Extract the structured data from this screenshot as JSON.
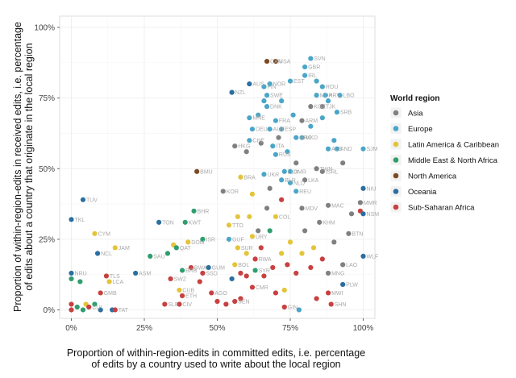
{
  "chart_data": {
    "type": "scatter",
    "xlabel": "Proportion of within-region-edits in committed edits, i.e. percentage\nof edits by a country used to write about the local region",
    "ylabel": "Proportion of within-region-edits in received edits, i.e. percentage\nof edits about a country that originate in the local region",
    "xlim": [
      -0.04,
      1.04
    ],
    "ylim": [
      -0.03,
      1.04
    ],
    "x_ticks": [
      0,
      0.25,
      0.5,
      0.75,
      1
    ],
    "x_tick_labels": [
      "0%",
      "25%",
      "50%",
      "75%",
      "100%"
    ],
    "y_ticks": [
      0,
      0.25,
      0.5,
      0.75,
      1
    ],
    "y_tick_labels": [
      "0%",
      "25%",
      "50%",
      "75%",
      "100%"
    ],
    "grid": true,
    "legend": {
      "title": "World region",
      "placement": "right",
      "entries": [
        {
          "name": "Asia",
          "color": "#808080"
        },
        {
          "name": "Europe",
          "color": "#4aa6c8"
        },
        {
          "name": "Latin America & Caribbean",
          "color": "#e3c43a"
        },
        {
          "name": "Middle East & North Africa",
          "color": "#2e9e6e"
        },
        {
          "name": "North America",
          "color": "#7a4a25"
        },
        {
          "name": "Oceania",
          "color": "#2a6fa0"
        },
        {
          "name": "Sub-Saharan Africa",
          "color": "#c94040"
        }
      ]
    },
    "points": [
      {
        "label": "CAN",
        "x": 0.67,
        "y": 0.88,
        "region": "North America"
      },
      {
        "label": "USA",
        "x": 0.7,
        "y": 0.88,
        "region": "North America"
      },
      {
        "label": "BMU",
        "x": 0.43,
        "y": 0.49,
        "region": "North America"
      },
      {
        "label": "SVN",
        "x": 0.82,
        "y": 0.89,
        "region": "Europe"
      },
      {
        "label": "GBR",
        "x": 0.8,
        "y": 0.86,
        "region": "Europe"
      },
      {
        "label": "IRL",
        "x": 0.8,
        "y": 0.83,
        "region": "Europe"
      },
      {
        "label": "EST",
        "x": 0.75,
        "y": 0.81,
        "region": "Europe"
      },
      {
        "label": "FIN",
        "x": 0.66,
        "y": 0.79,
        "region": "Europe"
      },
      {
        "label": "NOR",
        "x": 0.68,
        "y": 0.8,
        "region": "Europe"
      },
      {
        "label": "ROU",
        "x": 0.86,
        "y": 0.79,
        "region": "Europe"
      },
      {
        "label": "SWE",
        "x": 0.67,
        "y": 0.76,
        "region": "Europe"
      },
      {
        "label": "MDA",
        "x": 0.84,
        "y": 0.76,
        "region": "Europe"
      },
      {
        "label": "HRV",
        "x": 0.87,
        "y": 0.76,
        "region": "Europe"
      },
      {
        "label": "LBO",
        "x": 0.92,
        "y": 0.76,
        "region": "Europe"
      },
      {
        "label": "DNK",
        "x": 0.67,
        "y": 0.72,
        "region": "Europe"
      },
      {
        "label": "MKD",
        "x": 0.79,
        "y": 0.61,
        "region": "Europe"
      },
      {
        "label": "SRB",
        "x": 0.91,
        "y": 0.7,
        "region": "Europe"
      },
      {
        "label": "MNE",
        "x": 0.61,
        "y": 0.68,
        "region": "Europe"
      },
      {
        "label": "FRA",
        "x": 0.7,
        "y": 0.67,
        "region": "Europe"
      },
      {
        "label": "DEU",
        "x": 0.62,
        "y": 0.64,
        "region": "Europe"
      },
      {
        "label": "AUT",
        "x": 0.68,
        "y": 0.64,
        "region": "Europe"
      },
      {
        "label": "ESP",
        "x": 0.72,
        "y": 0.64,
        "region": "Europe"
      },
      {
        "label": "GRC",
        "x": 0.77,
        "y": 0.61,
        "region": "Europe"
      },
      {
        "label": "CHE",
        "x": 0.61,
        "y": 0.6,
        "region": "Europe"
      },
      {
        "label": "ITA",
        "x": 0.69,
        "y": 0.58,
        "region": "Europe"
      },
      {
        "label": "RUS",
        "x": 0.7,
        "y": 0.55,
        "region": "Europe"
      },
      {
        "label": "ALB",
        "x": 0.88,
        "y": 0.57,
        "region": "Europe"
      },
      {
        "label": "AND",
        "x": 0.91,
        "y": 0.57,
        "region": "Europe"
      },
      {
        "label": "SJM",
        "x": 1.0,
        "y": 0.57,
        "region": "Europe"
      },
      {
        "label": "UKR",
        "x": 0.66,
        "y": 0.48,
        "region": "Europe"
      },
      {
        "label": "LUX",
        "x": 0.73,
        "y": 0.49,
        "region": "Europe"
      },
      {
        "label": "CMR",
        "x": 0.75,
        "y": 0.49,
        "region": "Europe"
      },
      {
        "label": "BLR",
        "x": 0.72,
        "y": 0.46,
        "region": "Europe"
      },
      {
        "label": "NLD",
        "x": 0.75,
        "y": 0.45,
        "region": "Europe"
      },
      {
        "label": "REU",
        "x": 0.77,
        "y": 0.42,
        "region": "Europe"
      },
      {
        "label": "GUF",
        "x": 0.54,
        "y": 0.25,
        "region": "Europe"
      },
      {
        "label": "KOR",
        "x": 0.52,
        "y": 0.42,
        "region": "Asia"
      },
      {
        "label": "HKG",
        "x": 0.56,
        "y": 0.58,
        "region": "Asia"
      },
      {
        "label": "KGZ",
        "x": 0.82,
        "y": 0.72,
        "region": "Asia"
      },
      {
        "label": "TJK",
        "x": 0.86,
        "y": 0.72,
        "region": "Asia"
      },
      {
        "label": "ARM",
        "x": 0.79,
        "y": 0.67,
        "region": "Asia"
      },
      {
        "label": "TWN",
        "x": 0.84,
        "y": 0.5,
        "region": "Asia"
      },
      {
        "label": "ISRL",
        "x": 0.86,
        "y": 0.49,
        "region": "Asia"
      },
      {
        "label": "LKA",
        "x": 0.8,
        "y": 0.46,
        "region": "Asia"
      },
      {
        "label": "MDV",
        "x": 0.79,
        "y": 0.36,
        "region": "Asia"
      },
      {
        "label": "MAC",
        "x": 0.88,
        "y": 0.37,
        "region": "Asia"
      },
      {
        "label": "MMR",
        "x": 0.99,
        "y": 0.38,
        "region": "Asia"
      },
      {
        "label": "KHM",
        "x": 0.85,
        "y": 0.31,
        "region": "Asia"
      },
      {
        "label": "BTN",
        "x": 0.95,
        "y": 0.27,
        "region": "Asia"
      },
      {
        "label": "LAO",
        "x": 0.93,
        "y": 0.16,
        "region": "Asia"
      },
      {
        "label": "MNG",
        "x": 0.88,
        "y": 0.13,
        "region": "Asia"
      },
      {
        "label": "BRA",
        "x": 0.58,
        "y": 0.47,
        "region": "Latin America & Caribbean"
      },
      {
        "label": "COL",
        "x": 0.7,
        "y": 0.33,
        "region": "Latin America & Caribbean"
      },
      {
        "label": "TTO",
        "x": 0.54,
        "y": 0.3,
        "region": "Latin America & Caribbean"
      },
      {
        "label": "URY",
        "x": 0.62,
        "y": 0.26,
        "region": "Latin America & Caribbean"
      },
      {
        "label": "CYM",
        "x": 0.08,
        "y": 0.27,
        "region": "Latin America & Caribbean"
      },
      {
        "label": "JAM",
        "x": 0.15,
        "y": 0.22,
        "region": "Latin America & Caribbean"
      },
      {
        "label": "LCA",
        "x": 0.13,
        "y": 0.1,
        "region": "Latin America & Caribbean"
      },
      {
        "label": "DOM",
        "x": 0.4,
        "y": 0.24,
        "region": "Latin America & Caribbean"
      },
      {
        "label": "CUB",
        "x": 0.37,
        "y": 0.07,
        "region": "Latin America & Caribbean"
      },
      {
        "label": "BHR",
        "x": 0.42,
        "y": 0.35,
        "region": "Middle East & North Africa"
      },
      {
        "label": "KWT",
        "x": 0.39,
        "y": 0.31,
        "region": "Middle East & North Africa"
      },
      {
        "label": "ISR",
        "x": 0.45,
        "y": 0.25,
        "region": "Middle East & North Africa"
      },
      {
        "label": "SAU",
        "x": 0.27,
        "y": 0.19,
        "region": "Middle East & North Africa"
      },
      {
        "label": "QAT",
        "x": 0.36,
        "y": 0.22,
        "region": "Middle East & North Africa"
      },
      {
        "label": "SYR",
        "x": 0.63,
        "y": 0.14,
        "region": "Middle East & North Africa"
      },
      {
        "label": "BRB",
        "x": 0.38,
        "y": 0.14,
        "region": "Middle East & North Africa"
      },
      {
        "label": "TKL",
        "x": 0.0,
        "y": 0.32,
        "region": "Oceania"
      },
      {
        "label": "TUV",
        "x": 0.04,
        "y": 0.39,
        "region": "Oceania"
      },
      {
        "label": "NCL",
        "x": 0.09,
        "y": 0.2,
        "region": "Oceania"
      },
      {
        "label": "NZL",
        "x": 0.55,
        "y": 0.77,
        "region": "Oceania"
      },
      {
        "label": "AUS",
        "x": 0.61,
        "y": 0.8,
        "region": "Oceania"
      },
      {
        "label": "TON",
        "x": 0.3,
        "y": 0.31,
        "region": "Oceania"
      },
      {
        "label": "ASM",
        "x": 0.22,
        "y": 0.13,
        "region": "Oceania"
      },
      {
        "label": "NRU",
        "x": 0.0,
        "y": 0.13,
        "region": "Oceania"
      },
      {
        "label": "GUM",
        "x": 0.47,
        "y": 0.15,
        "region": "Oceania"
      },
      {
        "label": "NIU",
        "x": 1.0,
        "y": 0.43,
        "region": "Oceania"
      },
      {
        "label": "WLF",
        "x": 1.0,
        "y": 0.19,
        "region": "Oceania"
      },
      {
        "label": "PLW",
        "x": 0.93,
        "y": 0.09,
        "region": "Oceania"
      },
      {
        "label": "NSM",
        "x": 1.0,
        "y": 0.34,
        "region": "Oceania"
      },
      {
        "label": "TLS",
        "x": 0.12,
        "y": 0.12,
        "region": "Sub-Saharan Africa"
      },
      {
        "label": "GMB",
        "x": 0.1,
        "y": 0.06,
        "region": "Sub-Saharan Africa"
      },
      {
        "label": "SWZ",
        "x": 0.34,
        "y": 0.11,
        "region": "Sub-Saharan Africa"
      },
      {
        "label": "BWA",
        "x": 0.41,
        "y": 0.15,
        "region": "Sub-Saharan Africa"
      },
      {
        "label": "SSD",
        "x": 0.45,
        "y": 0.13,
        "region": "Sub-Saharan Africa"
      },
      {
        "label": "ETH",
        "x": 0.38,
        "y": 0.05,
        "region": "Sub-Saharan Africa"
      },
      {
        "label": "AGO",
        "x": 0.48,
        "y": 0.06,
        "region": "Sub-Saharan Africa"
      },
      {
        "label": "SLE",
        "x": 0.32,
        "y": 0.02,
        "region": "Sub-Saharan Africa"
      },
      {
        "label": "CIV",
        "x": 0.37,
        "y": 0.02,
        "region": "Sub-Saharan Africa"
      },
      {
        "label": "SEN",
        "x": 0.56,
        "y": 0.03,
        "region": "Sub-Saharan Africa"
      },
      {
        "label": "MWI",
        "x": 0.88,
        "y": 0.06,
        "region": "Sub-Saharan Africa"
      },
      {
        "label": "SHN",
        "x": 0.89,
        "y": 0.02,
        "region": "Sub-Saharan Africa"
      },
      {
        "label": "CMR",
        "x": 0.62,
        "y": 0.08,
        "region": "Sub-Saharan Africa"
      },
      {
        "label": "RWA",
        "x": 0.63,
        "y": 0.18,
        "region": "Sub-Saharan Africa"
      },
      {
        "label": "CUI",
        "x": 0.06,
        "y": 0.01,
        "region": "Sub-Saharan Africa"
      },
      {
        "label": "TAT",
        "x": 0.15,
        "y": 0.0,
        "region": "Sub-Saharan Africa"
      },
      {
        "label": "GIN",
        "x": 0.73,
        "y": 0.01,
        "region": "Sub-Saharan Africa"
      },
      {
        "label": "BOL",
        "x": 0.56,
        "y": 0.16,
        "region": "Latin America & Caribbean"
      },
      {
        "label": "SUR",
        "x": 0.57,
        "y": 0.22,
        "region": "Latin America & Caribbean"
      }
    ],
    "unlabeled_points": [
      {
        "x": 0.0,
        "y": 0.11,
        "region": "Middle East & North Africa"
      },
      {
        "x": 0.03,
        "y": 0.1,
        "region": "Middle East & North Africa"
      },
      {
        "x": 0.0,
        "y": 0.02,
        "region": "Sub-Saharan Africa"
      },
      {
        "x": 0.0,
        "y": 0.0,
        "region": "Sub-Saharan Africa"
      },
      {
        "x": 0.02,
        "y": 0.01,
        "region": "Middle East & North Africa"
      },
      {
        "x": 0.04,
        "y": 0.0,
        "region": "Middle East & North Africa"
      },
      {
        "x": 0.05,
        "y": 0.02,
        "region": "Latin America & Caribbean"
      },
      {
        "x": 0.08,
        "y": 0.02,
        "region": "Middle East & North Africa"
      },
      {
        "x": 0.1,
        "y": 0.0,
        "region": "Oceania"
      },
      {
        "x": 0.14,
        "y": 0.0,
        "region": "Oceania"
      },
      {
        "x": 0.33,
        "y": 0.2,
        "region": "Middle East & North Africa"
      },
      {
        "x": 0.35,
        "y": 0.23,
        "region": "Latin America & Caribbean"
      },
      {
        "x": 0.44,
        "y": 0.1,
        "region": "Sub-Saharan Africa"
      },
      {
        "x": 0.5,
        "y": 0.03,
        "region": "Sub-Saharan Africa"
      },
      {
        "x": 0.53,
        "y": 0.02,
        "region": "Sub-Saharan Africa"
      },
      {
        "x": 0.58,
        "y": 0.04,
        "region": "Sub-Saharan Africa"
      },
      {
        "x": 0.6,
        "y": 0.12,
        "region": "Sub-Saharan Africa"
      },
      {
        "x": 0.6,
        "y": 0.2,
        "region": "Latin America & Caribbean"
      },
      {
        "x": 0.61,
        "y": 0.33,
        "region": "Latin America & Caribbean"
      },
      {
        "x": 0.62,
        "y": 0.41,
        "region": "Latin America & Caribbean"
      },
      {
        "x": 0.64,
        "y": 0.28,
        "region": "Asia"
      },
      {
        "x": 0.65,
        "y": 0.22,
        "region": "Sub-Saharan Africa"
      },
      {
        "x": 0.66,
        "y": 0.12,
        "region": "Sub-Saharan Africa"
      },
      {
        "x": 0.67,
        "y": 0.36,
        "region": "Asia"
      },
      {
        "x": 0.68,
        "y": 0.28,
        "region": "Middle East & North Africa"
      },
      {
        "x": 0.69,
        "y": 0.15,
        "region": "Sub-Saharan Africa"
      },
      {
        "x": 0.7,
        "y": 0.06,
        "region": "Sub-Saharan Africa"
      },
      {
        "x": 0.72,
        "y": 0.2,
        "region": "Latin America & Caribbean"
      },
      {
        "x": 0.73,
        "y": 0.07,
        "region": "Latin America & Caribbean"
      },
      {
        "x": 0.74,
        "y": 0.16,
        "region": "Sub-Saharan Africa"
      },
      {
        "x": 0.75,
        "y": 0.24,
        "region": "Latin America & Caribbean"
      },
      {
        "x": 0.77,
        "y": 0.13,
        "region": "Sub-Saharan Africa"
      },
      {
        "x": 0.78,
        "y": 0.0,
        "region": "Europe"
      },
      {
        "x": 0.79,
        "y": 0.2,
        "region": "Latin America & Caribbean"
      },
      {
        "x": 0.8,
        "y": 0.28,
        "region": "Asia"
      },
      {
        "x": 0.82,
        "y": 0.15,
        "region": "Sub-Saharan Africa"
      },
      {
        "x": 0.83,
        "y": 0.22,
        "region": "Latin America & Caribbean"
      },
      {
        "x": 0.84,
        "y": 0.04,
        "region": "Sub-Saharan Africa"
      },
      {
        "x": 0.86,
        "y": 0.18,
        "region": "Sub-Saharan Africa"
      },
      {
        "x": 0.9,
        "y": 0.24,
        "region": "Asia"
      },
      {
        "x": 0.6,
        "y": 0.56,
        "region": "Asia"
      },
      {
        "x": 0.65,
        "y": 0.59,
        "region": "Asia"
      },
      {
        "x": 0.71,
        "y": 0.61,
        "region": "Asia"
      },
      {
        "x": 0.74,
        "y": 0.56,
        "region": "Europe"
      },
      {
        "x": 0.77,
        "y": 0.52,
        "region": "Asia"
      },
      {
        "x": 0.82,
        "y": 0.65,
        "region": "Europe"
      },
      {
        "x": 0.86,
        "y": 0.68,
        "region": "Europe"
      },
      {
        "x": 0.9,
        "y": 0.6,
        "region": "Europe"
      },
      {
        "x": 0.93,
        "y": 0.52,
        "region": "Asia"
      },
      {
        "x": 0.64,
        "y": 0.69,
        "region": "Europe"
      },
      {
        "x": 0.66,
        "y": 0.74,
        "region": "Europe"
      },
      {
        "x": 0.72,
        "y": 0.74,
        "region": "Europe"
      },
      {
        "x": 0.76,
        "y": 0.69,
        "region": "Europe"
      },
      {
        "x": 0.84,
        "y": 0.81,
        "region": "Europe"
      },
      {
        "x": 0.88,
        "y": 0.74,
        "region": "Europe"
      },
      {
        "x": 0.99,
        "y": 0.35,
        "region": "Sub-Saharan Africa"
      },
      {
        "x": 0.96,
        "y": 0.34,
        "region": "Asia"
      },
      {
        "x": 0.72,
        "y": 0.39,
        "region": "Sub-Saharan Africa"
      },
      {
        "x": 0.68,
        "y": 0.43,
        "region": "Asia"
      },
      {
        "x": 0.57,
        "y": 0.33,
        "region": "Latin America & Caribbean"
      },
      {
        "x": 0.55,
        "y": 0.11,
        "region": "Oceania"
      },
      {
        "x": 0.58,
        "y": 0.13,
        "region": "Sub-Saharan Africa"
      }
    ]
  }
}
